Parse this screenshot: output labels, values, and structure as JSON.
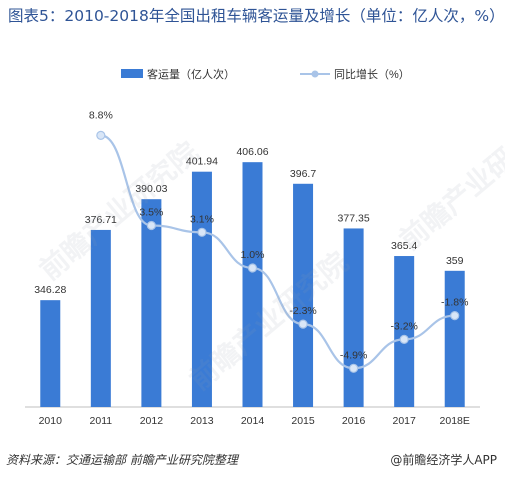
{
  "title": "图表5：2010-2018年全国出租车辆客运量及增长（单位：亿人次，%）",
  "chart_data": {
    "type": "bar",
    "categories": [
      "2010",
      "2011",
      "2012",
      "2013",
      "2014",
      "2015",
      "2016",
      "2017",
      "2018E"
    ],
    "series": [
      {
        "name": "客运量（亿人次）",
        "type": "bar",
        "color": "#3a7bd5",
        "values": [
          346.28,
          376.71,
          390.03,
          401.94,
          406.06,
          396.7,
          377.35,
          365.4,
          359
        ],
        "labels": [
          "346.28",
          "376.71",
          "390.03",
          "401.94",
          "406.06",
          "396.7",
          "377.35",
          "365.4",
          "359"
        ]
      },
      {
        "name": "同比增长（%）",
        "type": "line",
        "color": "#a9c4e8",
        "values": [
          null,
          8.8,
          3.5,
          3.1,
          1.0,
          -2.3,
          -4.9,
          -3.2,
          -1.8
        ],
        "labels": [
          "",
          "8.8%",
          "3.5%",
          "3.1%",
          "1.0%",
          "-2.3%",
          "-4.9%",
          "-3.2%",
          "-1.8%"
        ]
      }
    ],
    "bar_axis": {
      "min": 300,
      "max": 420
    },
    "line_axis": {
      "min": -6,
      "max": 10
    },
    "legend_position": "top"
  },
  "footer": {
    "source": "资料来源：交通运输部 前瞻产业研究院整理",
    "brand": "@前瞻经济学人APP"
  },
  "watermark": "前瞻产业研究院"
}
